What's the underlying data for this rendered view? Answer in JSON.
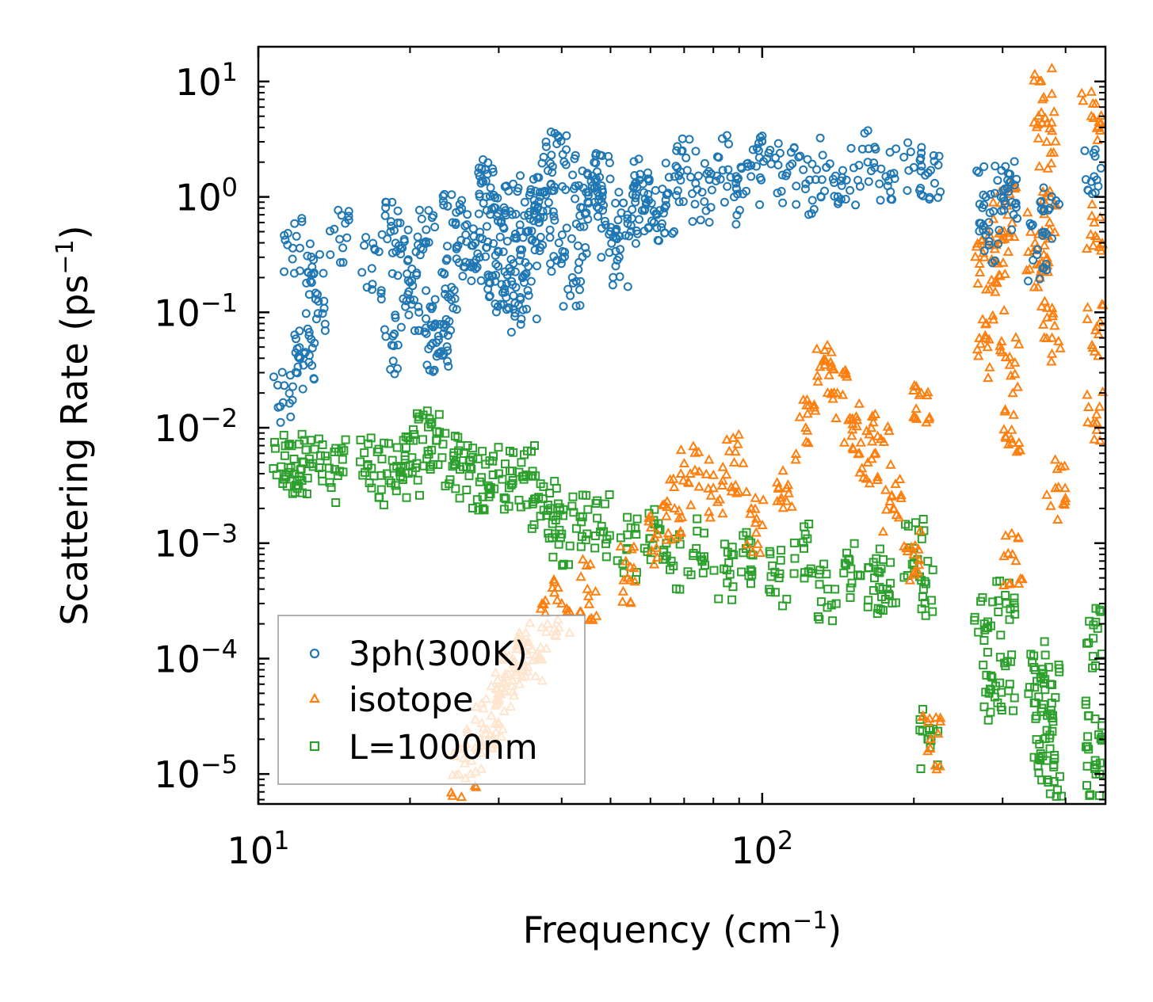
{
  "chart_data": {
    "type": "scatter",
    "xscale": "log",
    "yscale": "log",
    "xlim": [
      10,
      480
    ],
    "ylim": [
      5.5e-06,
      20
    ],
    "xlabel": {
      "text": "Frequency (cm",
      "sup": "−1",
      "tail": ")"
    },
    "ylabel": {
      "text": "Scattering Rate (ps",
      "sup": "−1",
      "tail": ")"
    },
    "x_ticks": [
      {
        "value": 10,
        "base": "10",
        "exp": "1"
      },
      {
        "value": 100,
        "base": "10",
        "exp": "2"
      }
    ],
    "y_ticks": [
      {
        "value": 10,
        "base": "10",
        "exp": "1"
      },
      {
        "value": 1,
        "base": "10",
        "exp": "0"
      },
      {
        "value": 0.1,
        "base": "10",
        "exp": "−1"
      },
      {
        "value": 0.01,
        "base": "10",
        "exp": "−2"
      },
      {
        "value": 0.001,
        "base": "10",
        "exp": "−3"
      },
      {
        "value": 0.0001,
        "base": "10",
        "exp": "−4"
      },
      {
        "value": 1e-05,
        "base": "10",
        "exp": "−5"
      }
    ],
    "legend": {
      "position": "lower-left",
      "entries": [
        {
          "label": "3ph(300K)",
          "marker": "circle",
          "color": "#1f77b4"
        },
        {
          "label": "isotope",
          "marker": "triangle",
          "color": "#ff7f0e"
        },
        {
          "label": "L=1000nm",
          "marker": "square",
          "color": "#2ca02c"
        }
      ]
    },
    "series": [
      {
        "name": "3ph(300K)",
        "marker": "circle",
        "color": "#1f77b4",
        "points": [
          [
            11.2,
            0.0165
          ],
          [
            11.7,
            0.36
          ],
          [
            12.1,
            0.04
          ],
          [
            12.4,
            0.045
          ],
          [
            12.9,
            0.22
          ],
          [
            13.0,
            0.13
          ],
          [
            14.5,
            0.43
          ],
          [
            16.8,
            0.24
          ],
          [
            18.3,
            0.5
          ],
          [
            18.4,
            0.052
          ],
          [
            19.3,
            0.36
          ],
          [
            20.0,
            0.13
          ],
          [
            20.6,
            0.21
          ],
          [
            21.5,
            0.41
          ],
          [
            22.2,
            0.054
          ],
          [
            22.4,
            0.077
          ],
          [
            23.5,
            0.16
          ],
          [
            23.8,
            0.063
          ],
          [
            24.3,
            0.6
          ],
          [
            25.8,
            0.47
          ],
          [
            26.5,
            0.38
          ],
          [
            27.5,
            0.3
          ],
          [
            28.3,
            1.0
          ],
          [
            28.9,
            1.2
          ],
          [
            29.6,
            0.21
          ],
          [
            30.2,
            0.45
          ],
          [
            30.8,
            0.16
          ],
          [
            31.6,
            0.75
          ],
          [
            32.3,
            0.12
          ],
          [
            33.0,
            0.28
          ],
          [
            33.8,
            0.9
          ],
          [
            34.4,
            0.14
          ],
          [
            35.2,
            0.62
          ],
          [
            36.0,
            0.6
          ],
          [
            37.0,
            1.1
          ],
          [
            38.0,
            1.95
          ],
          [
            39.5,
            0.4
          ],
          [
            40.8,
            1.9
          ],
          [
            42.0,
            0.2
          ],
          [
            43.5,
            0.55
          ],
          [
            45.0,
            1.6
          ],
          [
            46.5,
            0.9
          ],
          [
            48.0,
            1.25
          ],
          [
            50.0,
            0.5
          ],
          [
            52.0,
            0.3
          ],
          [
            54.0,
            0.7
          ],
          [
            56.0,
            0.9
          ],
          [
            58.0,
            1.3
          ],
          [
            61.0,
            0.6
          ],
          [
            64.0,
            0.8
          ],
          [
            67.0,
            1.5
          ],
          [
            71.0,
            1.7
          ],
          [
            76.0,
            1.1
          ],
          [
            82.0,
            2.2
          ],
          [
            88.0,
            1.0
          ],
          [
            95.0,
            1.5
          ],
          [
            103.0,
            2.4
          ],
          [
            112.0,
            1.6
          ],
          [
            122.0,
            1.3
          ],
          [
            134.0,
            1.8
          ],
          [
            147.0,
            1.4
          ],
          [
            162.0,
            2.0
          ],
          [
            176.0,
            1.5
          ],
          [
            200.0,
            1.8
          ],
          [
            216.0,
            1.7
          ],
          [
            278.0,
            1.0
          ],
          [
            282.0,
            0.5
          ],
          [
            307.0,
            1.4
          ],
          [
            313.0,
            0.9
          ],
          [
            352.0,
            0.35
          ],
          [
            372.0,
            0.8
          ],
          [
            456.0,
            1.5
          ]
        ]
      },
      {
        "name": "isotope",
        "marker": "triangle",
        "color": "#ff7f0e",
        "points": [
          [
            25.0,
            1e-05
          ],
          [
            26.5,
            1.3e-05
          ],
          [
            28.0,
            2.5e-05
          ],
          [
            29.0,
            3.2e-05
          ],
          [
            30.0,
            4.5e-05
          ],
          [
            31.0,
            7e-05
          ],
          [
            32.0,
            0.0001
          ],
          [
            33.5,
            9.5e-05
          ],
          [
            35.0,
            0.00012
          ],
          [
            37.5,
            0.0002
          ],
          [
            40.0,
            0.0003
          ],
          [
            45.0,
            0.0004
          ],
          [
            54.0,
            0.0005
          ],
          [
            62.0,
            0.0012
          ],
          [
            67.0,
            0.002
          ],
          [
            72.0,
            0.004
          ],
          [
            80.0,
            0.003
          ],
          [
            88.0,
            0.005
          ],
          [
            97.0,
            0.0015
          ],
          [
            112.0,
            0.003
          ],
          [
            122.0,
            0.01
          ],
          [
            133.0,
            0.035
          ],
          [
            141.0,
            0.02
          ],
          [
            151.0,
            0.012
          ],
          [
            162.0,
            0.005
          ],
          [
            172.0,
            0.008
          ],
          [
            182.0,
            0.002
          ],
          [
            200.0,
            0.0008
          ],
          [
            207.0,
            0.02
          ],
          [
            216.0,
            2e-05
          ],
          [
            276.0,
            0.3
          ],
          [
            280.0,
            0.05
          ],
          [
            290.0,
            0.15
          ],
          [
            299.0,
            0.5
          ],
          [
            307.0,
            0.7
          ],
          [
            310.0,
            0.035
          ],
          [
            312.0,
            0.008
          ],
          [
            314.0,
            0.0008
          ],
          [
            348.0,
            0.4
          ],
          [
            355.0,
            0.2
          ],
          [
            360.0,
            7.0
          ],
          [
            367.0,
            3.0
          ],
          [
            372.0,
            0.6
          ],
          [
            376.0,
            0.06
          ],
          [
            382.0,
            0.003
          ],
          [
            450.0,
            5.0
          ],
          [
            456.0,
            0.6
          ],
          [
            459.0,
            0.07
          ],
          [
            461.0,
            0.013
          ]
        ]
      },
      {
        "name": "L=1000nm",
        "marker": "square",
        "color": "#2ca02c",
        "points": [
          [
            11.1,
            0.0046
          ],
          [
            11.6,
            0.0045
          ],
          [
            12.3,
            0.005
          ],
          [
            13.2,
            0.0045
          ],
          [
            14.5,
            0.0042
          ],
          [
            16.5,
            0.0048
          ],
          [
            18.0,
            0.004
          ],
          [
            19.2,
            0.0045
          ],
          [
            20.0,
            0.0047
          ],
          [
            21.2,
            0.0079
          ],
          [
            22.6,
            0.0078
          ],
          [
            24.5,
            0.0048
          ],
          [
            25.5,
            0.0046
          ],
          [
            27.5,
            0.0034
          ],
          [
            30.0,
            0.004
          ],
          [
            32.0,
            0.0035
          ],
          [
            34.0,
            0.0039
          ],
          [
            36.0,
            0.0025
          ],
          [
            38.0,
            0.002
          ],
          [
            40.0,
            0.0012
          ],
          [
            43.5,
            0.0017
          ],
          [
            48.0,
            0.0014
          ],
          [
            54.0,
            0.0009
          ],
          [
            60.0,
            0.0011
          ],
          [
            66.0,
            0.0007
          ],
          [
            74.0,
            0.0009
          ],
          [
            84.0,
            0.0006
          ],
          [
            95.0,
            0.0008
          ],
          [
            108.0,
            0.0005
          ],
          [
            121.0,
            0.0009
          ],
          [
            135.0,
            0.0004
          ],
          [
            150.0,
            0.0006
          ],
          [
            167.0,
            0.0005
          ],
          [
            177.0,
            0.0004
          ],
          [
            200.0,
            0.0009
          ],
          [
            209.0,
            0.0004
          ],
          [
            214.0,
            2e-05
          ],
          [
            276.0,
            0.0002
          ],
          [
            282.0,
            5e-05
          ],
          [
            305.0,
            0.0003
          ],
          [
            310.0,
            6e-05
          ],
          [
            348.0,
            8e-05
          ],
          [
            357.0,
            1.5e-05
          ],
          [
            362.0,
            4e-05
          ],
          [
            373.0,
            6e-05
          ],
          [
            379.0,
            1.2e-05
          ],
          [
            454.0,
            0.00015
          ],
          [
            458.0,
            3e-05
          ],
          [
            461.0,
            1.2e-05
          ]
        ]
      }
    ]
  }
}
